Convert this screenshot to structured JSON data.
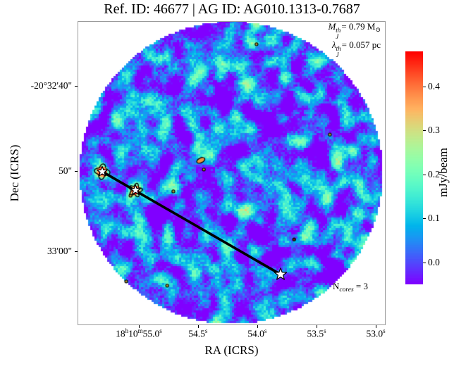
{
  "title": "Ref. ID: 46677 | AG ID: AG010.1313-0.7687",
  "annotations": {
    "mass": {
      "sym": "M",
      "sup": "th",
      "sub": "J",
      "val": "= 0.79 M",
      "unit_sub": "⊙"
    },
    "jeans": {
      "sym": "λ",
      "sup": "th",
      "sub": "J",
      "val": "= 0.057 pc"
    },
    "ncores": {
      "sym": "N",
      "sub": "cores",
      "val": " = 3"
    }
  },
  "axes": {
    "xlabel": "RA (ICRS)",
    "ylabel": "Dec (ICRS)",
    "x_ticks": [
      {
        "label": "18h10m55.0s",
        "f": 0.199
      },
      {
        "label": "54.5s",
        "f": 0.391
      },
      {
        "label": "54.0s",
        "f": 0.583
      },
      {
        "label": "53.5s",
        "f": 0.776
      },
      {
        "label": "53.0s",
        "f": 0.968
      }
    ],
    "y_ticks": [
      {
        "label": "-20°32'40\"",
        "f": 0.213
      },
      {
        "label": "50\"",
        "f": 0.493
      },
      {
        "label": "33'00\"",
        "f": 0.757
      }
    ]
  },
  "colorbar": {
    "label": "mJy/beam",
    "tick_labels": [
      "0.4",
      "0.3",
      "0.2",
      "0.1",
      "0.0"
    ],
    "tick_values": [
      0.4,
      0.3,
      0.2,
      0.1,
      0.0
    ],
    "vmin": -0.05,
    "vmax": 0.48,
    "colormap": "rainbow"
  },
  "chart_data": {
    "type": "heatmap",
    "title": "Ref. ID: 46677 | AG ID: AG010.1313-0.7687",
    "xlabel": "RA (ICRS)",
    "ylabel": "Dec (ICRS)",
    "x_tick_labels": [
      "18h10m55.0s",
      "54.5s",
      "54.0s",
      "53.5s",
      "53.0s"
    ],
    "y_tick_labels": [
      "-20°32'40\"",
      "50\"",
      "33'00\""
    ],
    "colorbar": {
      "label": "mJy/beam",
      "ticks": [
        0.4,
        0.3,
        0.2,
        0.1,
        0.0
      ],
      "approx_range": [
        -0.05,
        0.48
      ],
      "colormap": "rainbow"
    },
    "image": "circular field of mottled interferometric noise near 0 mJy/beam (purple-blue background with cyan-green fluctuations), white outside the aperture",
    "n_cores": 3,
    "cores": [
      {
        "id": 1,
        "fx": 0.08,
        "fy": 0.495,
        "appearance": "bright compact core, red-orange peak ~0.45 mJy/beam with black contour and white star marker"
      },
      {
        "id": 2,
        "fx": 0.188,
        "fy": 0.556,
        "appearance": "bright compact core, red-orange peak with black contour and white star marker"
      },
      {
        "id": 3,
        "fx": 0.659,
        "fy": 0.833,
        "appearance": "faint core marked by white star marker only"
      }
    ],
    "connecting_line": {
      "from_core": 1,
      "to_core": 3,
      "style": "thick straight black line through all three cores"
    },
    "small_contours_fx_fy": [
      [
        0.581,
        0.076
      ],
      [
        0.819,
        0.373
      ],
      [
        0.4,
        0.458
      ],
      [
        0.41,
        0.488
      ],
      [
        0.311,
        0.56
      ],
      [
        0.172,
        0.574
      ],
      [
        0.703,
        0.718
      ],
      [
        0.158,
        0.856
      ],
      [
        0.291,
        0.87
      ]
    ],
    "annotations": [
      "M_J^th = 0.79 M⊙",
      "λ_J^th = 0.057 pc",
      "N_cores = 3"
    ]
  }
}
